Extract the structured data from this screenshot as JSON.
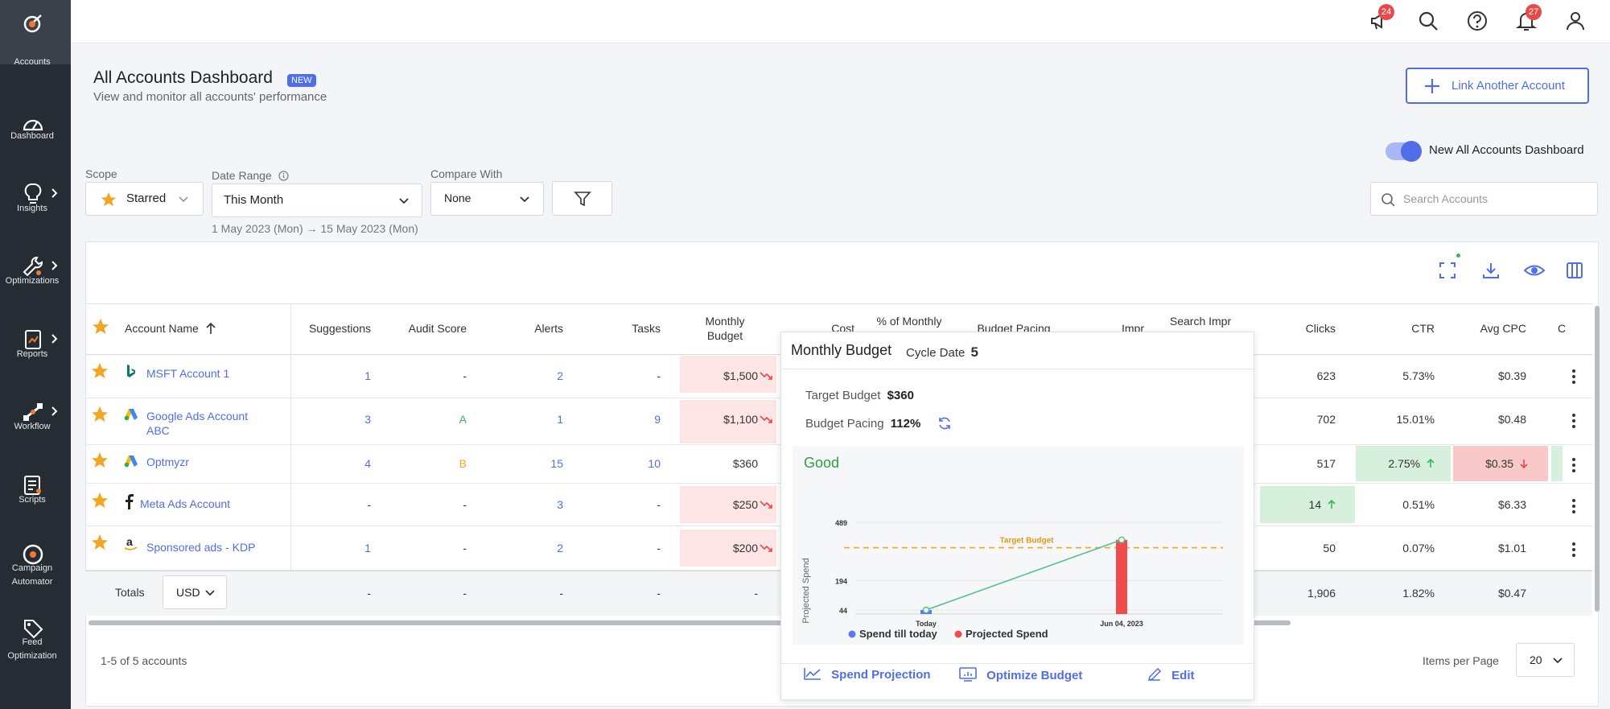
{
  "sidebar": {
    "items": [
      {
        "label": "Accounts"
      },
      {
        "label": "Dashboard"
      },
      {
        "label": "Insights"
      },
      {
        "label": "Optimizations"
      },
      {
        "label": "Reports"
      },
      {
        "label": "Workflow"
      },
      {
        "label": "Scripts"
      },
      {
        "label": "Campaign Automator"
      },
      {
        "label": "Feed Optimization"
      }
    ]
  },
  "topbar": {
    "announcements_count": "24",
    "notifications_count": "27"
  },
  "header": {
    "title": "All Accounts Dashboard",
    "new_badge": "NEW",
    "subtitle": "View and monitor all accounts' performance",
    "link_button": "Link Another Account",
    "toggle_label": "New All Accounts Dashboard"
  },
  "filters": {
    "scope_label": "Scope",
    "scope_value": "Starred",
    "date_label": "Date Range",
    "date_value": "This Month",
    "date_range_note": "1 May 2023 (Mon) → 15 May 2023 (Mon)",
    "compare_label": "Compare With",
    "compare_value": "None",
    "search_placeholder": "Search Accounts"
  },
  "table": {
    "headers": {
      "account_name": "Account Name",
      "suggestions": "Suggestions",
      "audit_score": "Audit Score",
      "alerts": "Alerts",
      "tasks": "Tasks",
      "monthly_budget": "Monthly Budget",
      "cost": "Cost",
      "pct_monthly": "% of Monthly",
      "budget_pacing": "Budget Pacing",
      "impr": "Impr",
      "search_impr": "Search Impr",
      "clicks": "Clicks",
      "ctr": "CTR",
      "avg_cpc": "Avg CPC",
      "cut": "C"
    },
    "rows": [
      {
        "name": "MSFT Account 1",
        "suggestions": "1",
        "audit": "-",
        "alerts": "2",
        "tasks": "-",
        "budget": "$1,500",
        "clicks": "623",
        "ctr": "5.73%",
        "cpc": "$0.39"
      },
      {
        "name": "Google Ads Account ABC",
        "suggestions": "3",
        "audit": "A",
        "alerts": "1",
        "tasks": "9",
        "budget": "$1,100",
        "clicks": "702",
        "ctr": "15.01%",
        "cpc": "$0.48"
      },
      {
        "name": "Optmyzr",
        "suggestions": "4",
        "audit": "B",
        "alerts": "15",
        "tasks": "10",
        "budget": "$360",
        "clicks": "517",
        "ctr": "2.75%",
        "cpc": "$0.35"
      },
      {
        "name": "Meta Ads Account",
        "suggestions": "-",
        "audit": "-",
        "alerts": "3",
        "tasks": "-",
        "budget": "$250",
        "clicks": "14",
        "ctr": "0.51%",
        "cpc": "$6.33"
      },
      {
        "name": "Sponsored ads - KDP",
        "suggestions": "1",
        "audit": "-",
        "alerts": "2",
        "tasks": "-",
        "budget": "$200",
        "clicks": "50",
        "ctr": "0.07%",
        "cpc": "$1.01"
      }
    ],
    "totals": {
      "label": "Totals",
      "currency": "USD",
      "suggestions": "-",
      "audit": "-",
      "alerts": "-",
      "tasks": "-",
      "budget": "-",
      "clicks": "1,906",
      "ctr": "1.82%",
      "cpc": "$0.47"
    }
  },
  "footer": {
    "count_text": "1-5 of 5 accounts",
    "items_per_page_label": "Items per Page",
    "items_per_page_value": "20"
  },
  "popup": {
    "title": "Monthly Budget",
    "cycle_label": "Cycle Date",
    "cycle_value": "5",
    "target_label": "Target Budget",
    "target_value": "$360",
    "pacing_label": "Budget Pacing",
    "pacing_value": "112%",
    "status": "Good",
    "buttons": {
      "spend_projection": "Spend Projection",
      "optimize_budget": "Optimize Budget",
      "edit": "Edit"
    }
  },
  "chart_data": {
    "type": "bar",
    "categories": [
      "Today",
      "Jun 04, 2023"
    ],
    "series": [
      {
        "name": "Spend till today",
        "values": [
          44,
          null
        ],
        "color": "#5b7bf0"
      },
      {
        "name": "Projected Spend",
        "values": [
          null,
          400
        ],
        "color": "#ef4d4d"
      }
    ],
    "projection_line": [
      44,
      400
    ],
    "target_line": {
      "label": "Target Budget",
      "value": 360
    },
    "ylabel": "Projected Spend",
    "yticks": [
      44,
      194,
      489
    ],
    "ylim": [
      44,
      489
    ],
    "legend": "bottom"
  }
}
